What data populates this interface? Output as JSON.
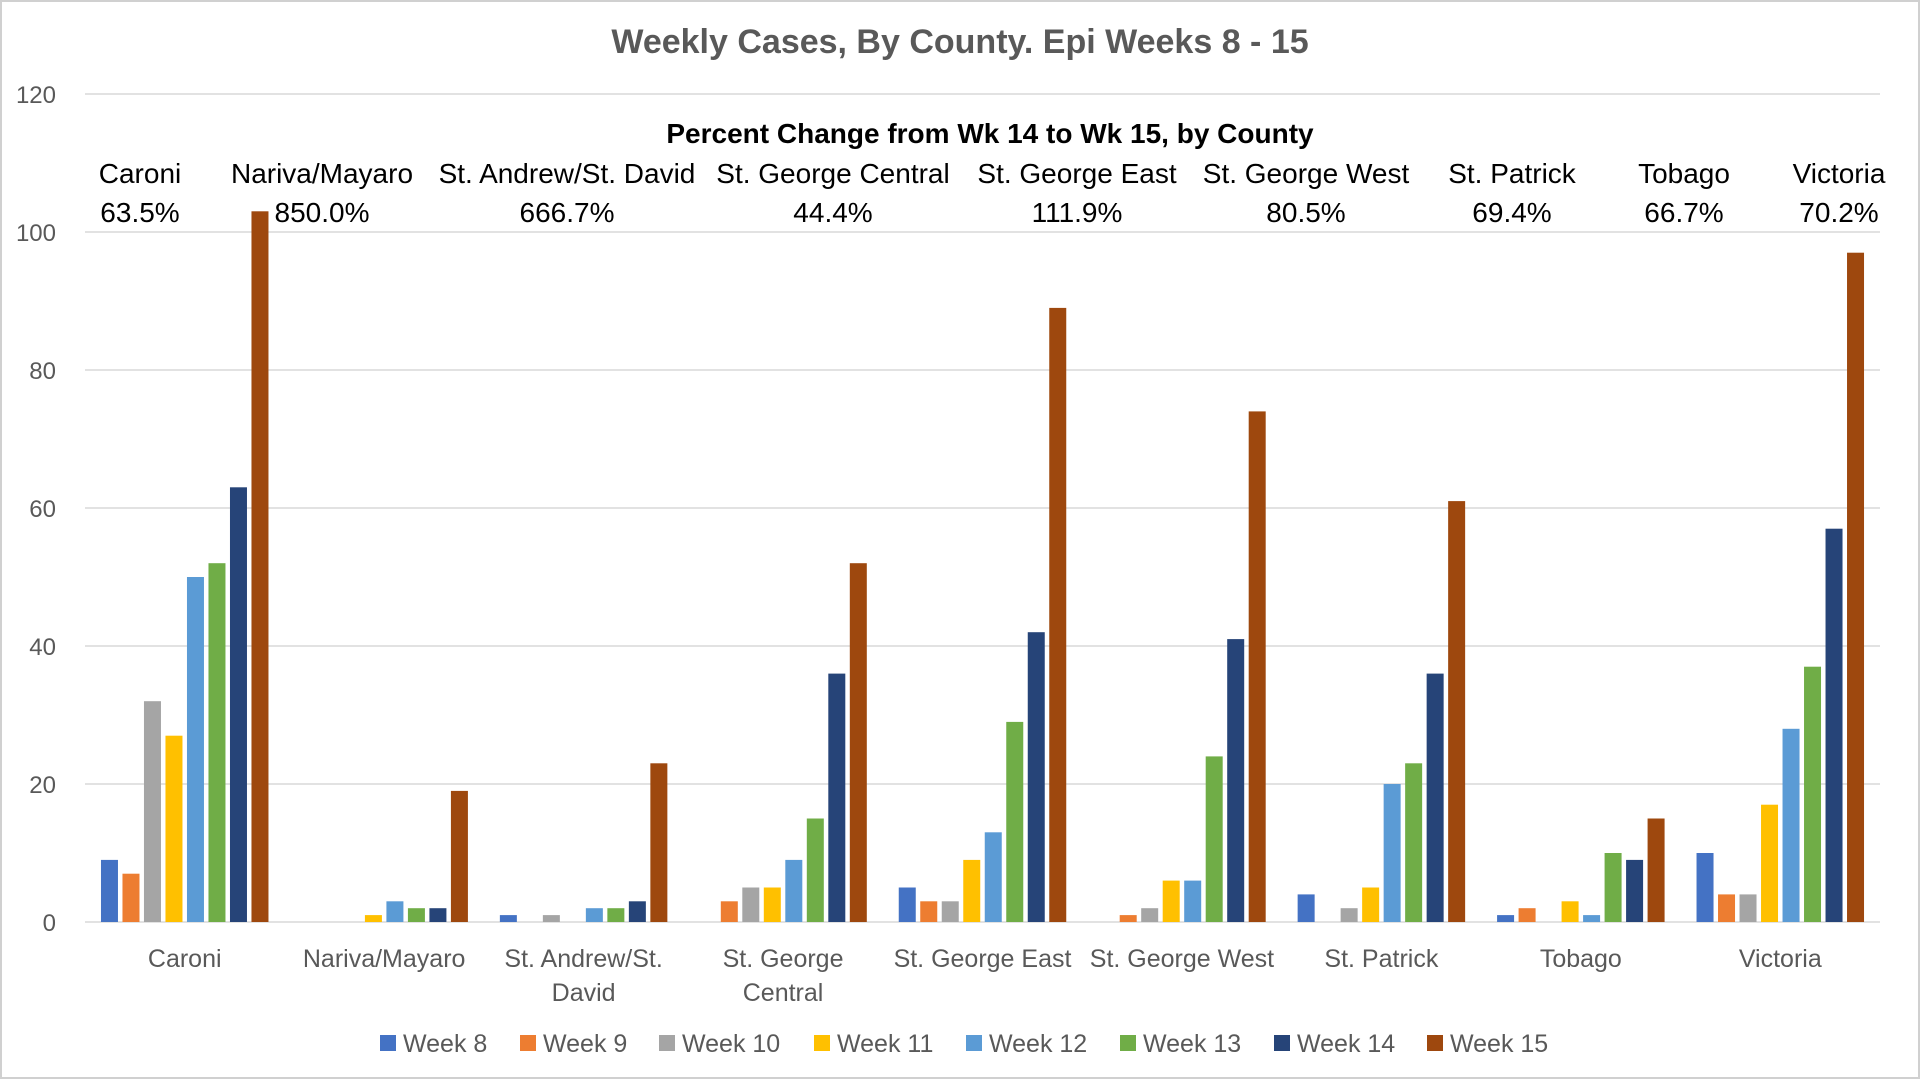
{
  "chart_data": {
    "type": "bar",
    "title": "Weekly Cases, By County. Epi Weeks 8 - 15",
    "annotation_title": "Percent Change from Wk 14 to Wk 15, by County",
    "ylim": [
      0,
      120
    ],
    "yticks": [
      "0",
      "20",
      "40",
      "60",
      "80",
      "100",
      "120"
    ],
    "grid": true,
    "legend_position": "bottom",
    "categories": [
      [
        "Caroni"
      ],
      [
        "Nariva/Mayaro"
      ],
      [
        "St. Andrew/St.",
        "David"
      ],
      [
        "St. George",
        "Central"
      ],
      [
        "St. George East"
      ],
      [
        "St. George West"
      ],
      [
        "St. Patrick"
      ],
      [
        "Tobago"
      ],
      [
        "Victoria"
      ]
    ],
    "percent_change": [
      {
        "county": "Caroni",
        "value": "63.5%"
      },
      {
        "county": "Nariva/Mayaro",
        "value": "850.0%"
      },
      {
        "county": "St. Andrew/St. David",
        "value": "666.7%"
      },
      {
        "county": "St. George Central",
        "value": "44.4%"
      },
      {
        "county": "St. George East",
        "value": "111.9%"
      },
      {
        "county": "St. George West",
        "value": "80.5%"
      },
      {
        "county": "St. Patrick",
        "value": "69.4%"
      },
      {
        "county": "Tobago",
        "value": "66.7%"
      },
      {
        "county": "Victoria",
        "value": "70.2%"
      }
    ],
    "series": [
      {
        "name": "Week 8",
        "color": "#4472c4",
        "values": [
          9,
          0,
          1,
          0,
          5,
          0,
          4,
          1,
          10
        ]
      },
      {
        "name": "Week 9",
        "color": "#ed7d31",
        "values": [
          7,
          0,
          0,
          3,
          3,
          1,
          0,
          2,
          4
        ]
      },
      {
        "name": "Week 10",
        "color": "#a5a5a5",
        "values": [
          32,
          0,
          1,
          5,
          3,
          2,
          2,
          0,
          4
        ]
      },
      {
        "name": "Week 11",
        "color": "#ffc000",
        "values": [
          27,
          1,
          0,
          5,
          9,
          6,
          5,
          3,
          17
        ]
      },
      {
        "name": "Week 12",
        "color": "#5b9bd5",
        "values": [
          50,
          3,
          2,
          9,
          13,
          6,
          20,
          1,
          28
        ]
      },
      {
        "name": "Week 13",
        "color": "#70ad47",
        "values": [
          52,
          2,
          2,
          15,
          29,
          24,
          23,
          10,
          37
        ]
      },
      {
        "name": "Week 14",
        "color": "#264478",
        "values": [
          63,
          2,
          3,
          36,
          42,
          41,
          36,
          9,
          57
        ]
      },
      {
        "name": "Week 15",
        "color": "#9e480e",
        "values": [
          103,
          19,
          23,
          52,
          89,
          74,
          61,
          15,
          97
        ]
      }
    ]
  }
}
